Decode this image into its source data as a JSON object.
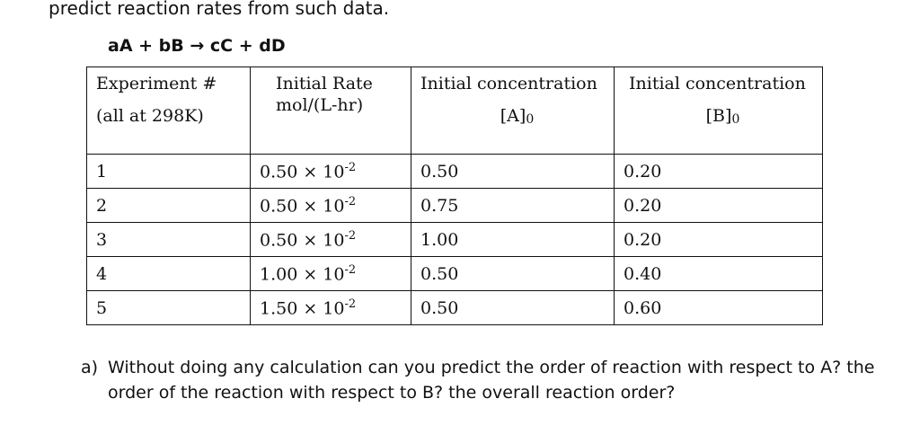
{
  "intro": "predict reaction rates from such data.",
  "equation": "aA + bB → cC + dD",
  "table": {
    "headers": {
      "col1_line1": "Experiment #",
      "col1_line2": "(all at 298K)",
      "col2_line1": "Initial Rate",
      "col2_line2": "mol/(L-hr)",
      "col3_line1": "Initial concentration",
      "col3_line2": "[A]",
      "col3_sub": "0",
      "col4_line1": "Initial concentration",
      "col4_line2": "[B]",
      "col4_sub": "0"
    },
    "rows": [
      {
        "exp": "1",
        "rate_base": "0.50 × 10",
        "rate_exp": "-2",
        "a": "0.50",
        "b": "0.20"
      },
      {
        "exp": "2",
        "rate_base": "0.50 × 10",
        "rate_exp": "-2",
        "a": "0.75",
        "b": "0.20"
      },
      {
        "exp": "3",
        "rate_base": "0.50 × 10",
        "rate_exp": "-2",
        "a": "1.00",
        "b": "0.20"
      },
      {
        "exp": "4",
        "rate_base": "1.00 × 10",
        "rate_exp": "-2",
        "a": "0.50",
        "b": "0.40"
      },
      {
        "exp": "5",
        "rate_base": "1.50 × 10",
        "rate_exp": "-2",
        "a": "0.50",
        "b": "0.60"
      }
    ]
  },
  "question": {
    "label": "a)",
    "text": "Without doing any calculation can you predict the order of reaction with respect to A? the order of the reaction with respect to B? the overall reaction order?"
  }
}
